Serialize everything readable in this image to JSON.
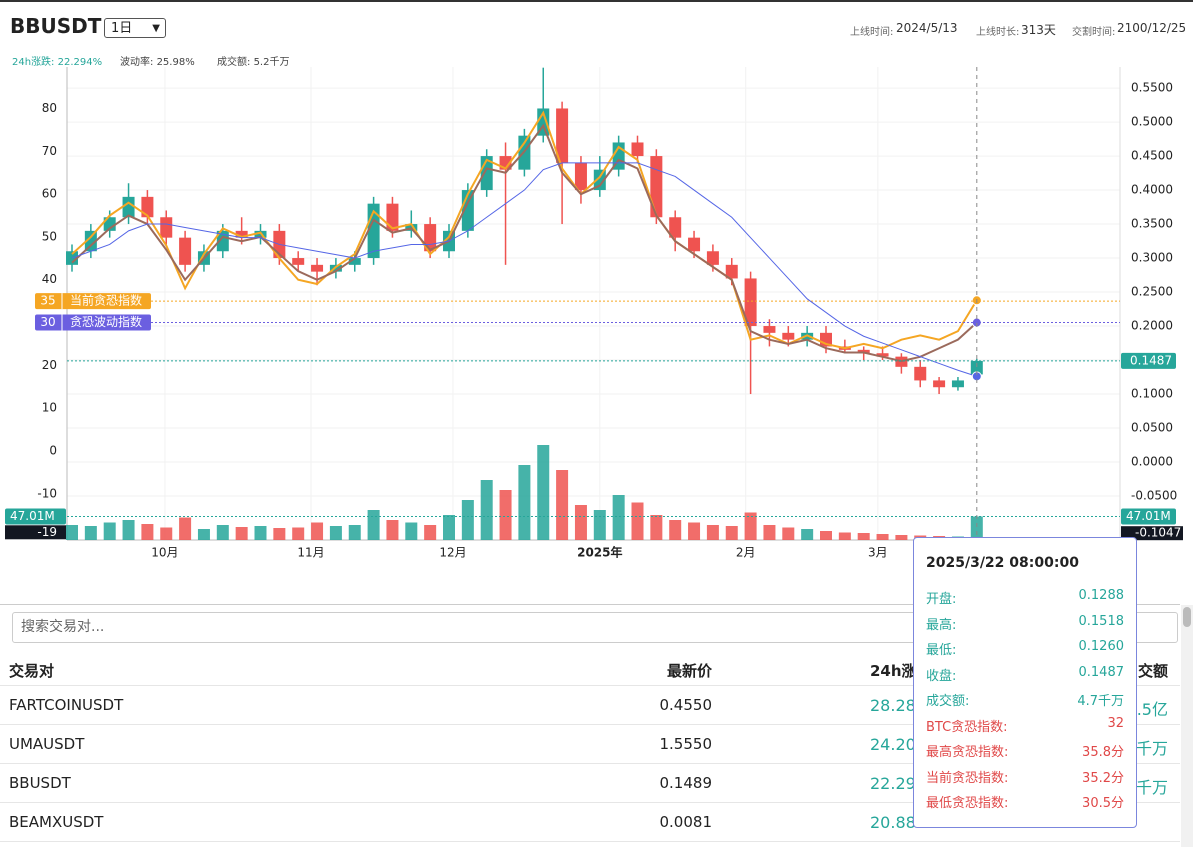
{
  "header": {
    "symbol": "BBUSDT",
    "interval": "1日",
    "info": [
      {
        "label": "上线时间:",
        "value": "2024/5/13"
      },
      {
        "label": "上线时长:",
        "value": "313天"
      },
      {
        "label": "交割时间:",
        "value": "2100/12/25"
      }
    ],
    "stats": [
      {
        "label": "24h涨跌:",
        "value": "22.294%"
      },
      {
        "label": "波动率:",
        "value": "25.98%"
      },
      {
        "label": "成交额:",
        "value": "5.2千万"
      }
    ]
  },
  "chart_data": {
    "type": "candlestick",
    "up_color": "#26a69a",
    "down_color": "#ef5350",
    "open": [
      0.29,
      0.31,
      0.34,
      0.36,
      0.39,
      0.36,
      0.33,
      0.29,
      0.31,
      0.34,
      0.33,
      0.34,
      0.3,
      0.29,
      0.28,
      0.29,
      0.3,
      0.38,
      0.34,
      0.35,
      0.31,
      0.34,
      0.4,
      0.45,
      0.43,
      0.48,
      0.52,
      0.44,
      0.4,
      0.43,
      0.47,
      0.45,
      0.36,
      0.33,
      0.31,
      0.29,
      0.27,
      0.2,
      0.19,
      0.18,
      0.19,
      0.17,
      0.165,
      0.16,
      0.155,
      0.14,
      0.12,
      0.11,
      0.1288
    ],
    "high": [
      0.32,
      0.35,
      0.37,
      0.41,
      0.4,
      0.37,
      0.34,
      0.32,
      0.35,
      0.36,
      0.35,
      0.35,
      0.31,
      0.3,
      0.3,
      0.31,
      0.39,
      0.39,
      0.37,
      0.36,
      0.35,
      0.41,
      0.46,
      0.47,
      0.49,
      0.58,
      0.53,
      0.45,
      0.45,
      0.48,
      0.48,
      0.46,
      0.37,
      0.34,
      0.32,
      0.3,
      0.28,
      0.21,
      0.2,
      0.2,
      0.2,
      0.18,
      0.17,
      0.17,
      0.16,
      0.15,
      0.125,
      0.125,
      0.1518
    ],
    "low": [
      0.28,
      0.3,
      0.33,
      0.35,
      0.35,
      0.32,
      0.28,
      0.28,
      0.3,
      0.32,
      0.32,
      0.29,
      0.28,
      0.26,
      0.27,
      0.28,
      0.29,
      0.33,
      0.33,
      0.3,
      0.3,
      0.33,
      0.39,
      0.29,
      0.42,
      0.47,
      0.35,
      0.38,
      0.39,
      0.42,
      0.44,
      0.35,
      0.31,
      0.3,
      0.28,
      0.26,
      0.1,
      0.17,
      0.17,
      0.17,
      0.16,
      0.16,
      0.15,
      0.15,
      0.13,
      0.11,
      0.1,
      0.105,
      0.126
    ],
    "close": [
      0.31,
      0.34,
      0.36,
      0.39,
      0.36,
      0.33,
      0.29,
      0.31,
      0.34,
      0.33,
      0.34,
      0.3,
      0.29,
      0.28,
      0.29,
      0.3,
      0.38,
      0.34,
      0.35,
      0.31,
      0.34,
      0.4,
      0.45,
      0.43,
      0.48,
      0.52,
      0.44,
      0.4,
      0.43,
      0.47,
      0.45,
      0.36,
      0.33,
      0.31,
      0.29,
      0.27,
      0.2,
      0.19,
      0.18,
      0.19,
      0.17,
      0.165,
      0.16,
      0.155,
      0.14,
      0.12,
      0.11,
      0.12,
      0.1487
    ],
    "volume": {
      "values": [
        30,
        28,
        35,
        40,
        32,
        25,
        45,
        22,
        30,
        26,
        28,
        24,
        25,
        35,
        28,
        30,
        60,
        40,
        35,
        30,
        50,
        80,
        120,
        100,
        150,
        190,
        140,
        70,
        60,
        90,
        75,
        50,
        40,
        35,
        30,
        28,
        55,
        30,
        25,
        22,
        18,
        15,
        14,
        12,
        10,
        9,
        8,
        7,
        47.01
      ],
      "vlim": [
        0,
        200
      ],
      "last_label": "47.01M"
    },
    "xticks": [
      {
        "value": 4.93,
        "label": "10月"
      },
      {
        "value": 12.68,
        "label": "11月"
      },
      {
        "value": 20.21,
        "label": "12月"
      },
      {
        "value": 28.0,
        "label": "2025年"
      },
      {
        "value": 35.74,
        "label": "2月"
      },
      {
        "value": 42.75,
        "label": "3月"
      }
    ],
    "ylim": [
      -20.8,
      89.7
    ],
    "yticks": [
      80,
      70,
      60,
      50,
      40,
      20,
      10,
      0,
      -10
    ],
    "y2lim": [
      -0.1147,
      0.581
    ],
    "y2ticks": [
      {
        "value": 0.55,
        "label": "0.5500"
      },
      {
        "value": 0.5,
        "label": "0.5000"
      },
      {
        "value": 0.45,
        "label": "0.4500"
      },
      {
        "value": 0.4,
        "label": "0.4000"
      },
      {
        "value": 0.35,
        "label": "0.3500"
      },
      {
        "value": 0.3,
        "label": "0.3000"
      },
      {
        "value": 0.25,
        "label": "0.2500"
      },
      {
        "value": 0.2,
        "label": "0.2000"
      },
      {
        "value": 0.15,
        "label": "0.1500"
      },
      {
        "value": 0.1,
        "label": "0.1000"
      },
      {
        "value": 0.05,
        "label": "0.0500"
      },
      {
        "value": 0,
        "label": "0.0000"
      },
      {
        "value": -0.05,
        "label": "-0.0500"
      }
    ],
    "series": [
      {
        "name": "当前贪恐指数",
        "color": "#f5a623",
        "tag_color": "#f5a623",
        "level": 35,
        "axis": "y",
        "values": [
          46,
          50,
          55,
          58,
          55,
          48,
          38,
          46,
          52,
          50,
          51,
          45,
          40,
          39,
          43,
          46,
          56,
          52,
          53,
          46,
          50,
          60,
          68,
          66,
          72,
          79,
          66,
          60,
          64,
          71,
          68,
          55,
          49,
          46,
          43,
          40,
          26,
          27,
          25,
          27,
          25,
          24,
          25,
          24,
          26,
          27,
          26,
          28,
          35.2
        ]
      },
      {
        "name": "贪恐波动指数",
        "color": "#9b6a5c",
        "tag_color": "#6b5fe0",
        "level": 30,
        "axis": "y",
        "values": [
          44,
          48,
          52,
          55,
          53,
          47,
          40,
          45,
          50,
          49,
          50,
          46,
          42,
          40,
          42,
          45,
          54,
          51,
          52,
          47,
          49,
          58,
          66,
          65,
          70,
          76,
          65,
          60,
          62,
          68,
          66,
          55,
          49,
          46,
          43,
          40,
          28,
          26,
          25,
          26,
          24,
          23,
          23,
          22,
          21,
          22,
          24,
          26,
          30
        ]
      },
      {
        "color": "#5566e6",
        "axis": "y2",
        "values": [
          0.3,
          0.31,
          0.32,
          0.34,
          0.35,
          0.35,
          0.345,
          0.34,
          0.335,
          0.33,
          0.33,
          0.32,
          0.315,
          0.31,
          0.305,
          0.3,
          0.31,
          0.315,
          0.32,
          0.32,
          0.325,
          0.34,
          0.36,
          0.38,
          0.4,
          0.43,
          0.44,
          0.44,
          0.44,
          0.44,
          0.44,
          0.43,
          0.42,
          0.4,
          0.38,
          0.36,
          0.33,
          0.3,
          0.27,
          0.24,
          0.22,
          0.2,
          0.185,
          0.175,
          0.165,
          0.155,
          0.145,
          0.135,
          0.126
        ]
      }
    ],
    "last_price": 0.1487,
    "cursor_y": -19,
    "cursor_y2": -0.1047
  },
  "tooltip": {
    "title": "2025/3/22 08:00:00",
    "rows": [
      {
        "label": "开盘:",
        "value": "0.1288"
      },
      {
        "label": "最高:",
        "value": "0.1518"
      },
      {
        "label": "最低:",
        "value": "0.1260"
      },
      {
        "label": "收盘:",
        "value": "0.1487"
      },
      {
        "label": "成交额:",
        "value": "4.7千万"
      },
      {
        "label": "BTC贪恐指数:",
        "value": "32"
      },
      {
        "label": "最高贪恐指数:",
        "value": "35.8分"
      },
      {
        "label": "当前贪恐指数:",
        "value": "35.2分"
      },
      {
        "label": "最低贪恐指数:",
        "value": "30.5分"
      }
    ]
  },
  "search": {
    "placeholder": "搜索交易对..."
  },
  "table": {
    "header": [
      "交易对",
      "最新价",
      "24h涨",
      "交额"
    ],
    "rows": [
      [
        "FARTCOINUSDT",
        "0.4550",
        "28.28",
        ".5亿"
      ],
      [
        "UMAUSDT",
        "1.5550",
        "24.20",
        "千万"
      ],
      [
        "BBUSDT",
        "0.1489",
        "22.29",
        "千万"
      ],
      [
        "BEAMXUSDT",
        "0.0081",
        "20.88"
      ]
    ]
  }
}
